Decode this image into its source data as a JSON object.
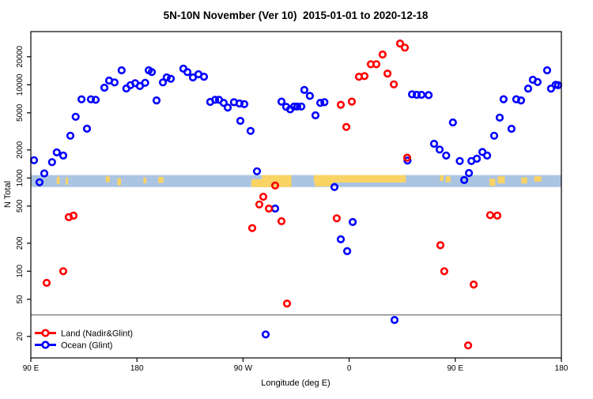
{
  "chart_data": {
    "type": "scatter",
    "title": "5N-10N November (Ver 10)  2015-01-01 to 2020-12-18",
    "xlabel": "Longitude (deg E)",
    "ylabel": "N Total",
    "x_axis": {
      "unit": "degrees east of 90E along wrapped longitude axis",
      "range_deg": [
        0,
        450
      ],
      "ticks": [
        {
          "pos": 0,
          "label": "90 E"
        },
        {
          "pos": 90,
          "label": "180"
        },
        {
          "pos": 180,
          "label": "90 W"
        },
        {
          "pos": 270,
          "label": "0"
        },
        {
          "pos": 360,
          "label": "90 E"
        },
        {
          "pos": 450,
          "label": "180"
        }
      ]
    },
    "y_axis": {
      "scale": "log",
      "range": [
        12,
        37000
      ],
      "ticks": [
        20,
        50,
        100,
        200,
        500,
        1000,
        2000,
        5000,
        10000,
        20000
      ],
      "tick_labels": [
        "20",
        "50",
        "100",
        "200",
        "500",
        "1000",
        "2000",
        "5000",
        "10000",
        "20000"
      ]
    },
    "reference_line": {
      "value": 34,
      "color": "#7a7a7a"
    },
    "latitude_band": {
      "description": "land/ocean strip for 5N-10N latitude",
      "value_range": [
        800,
        1075
      ],
      "ocean_color": "#abc4e2",
      "land_color": "#fad365",
      "land_segments": [
        {
          "a1": 22,
          "a2": 24.5,
          "t": 0.15,
          "b": 0.75
        },
        {
          "a1": 29.5,
          "a2": 31.5,
          "t": 0.2,
          "b": 0.8
        },
        {
          "a1": 63.5,
          "a2": 67,
          "t": 0.1,
          "b": 0.6
        },
        {
          "a1": 73.5,
          "a2": 76.5,
          "t": 0.25,
          "b": 0.85
        },
        {
          "a1": 95.5,
          "a2": 98,
          "t": 0.2,
          "b": 0.7
        },
        {
          "a1": 108,
          "a2": 112.5,
          "t": 0.15,
          "b": 0.65
        },
        {
          "a1": 187,
          "a2": 203,
          "t": 0.35,
          "b": 1.0
        },
        {
          "a1": 196,
          "a2": 221,
          "t": 0.0,
          "b": 1.0
        },
        {
          "a1": 241,
          "a2": 256,
          "t": 0.0,
          "b": 0.95
        },
        {
          "a1": 240,
          "a2": 318,
          "t": 0.0,
          "b": 0.62
        },
        {
          "a1": 347,
          "a2": 350,
          "t": 0.0,
          "b": 0.5
        },
        {
          "a1": 352,
          "a2": 356,
          "t": 0.1,
          "b": 0.6
        },
        {
          "a1": 389,
          "a2": 394,
          "t": 0.3,
          "b": 0.9
        },
        {
          "a1": 396,
          "a2": 402,
          "t": 0.1,
          "b": 0.7
        },
        {
          "a1": 416,
          "a2": 421,
          "t": 0.2,
          "b": 0.7
        },
        {
          "a1": 427,
          "a2": 433,
          "t": 0.1,
          "b": 0.55
        }
      ]
    },
    "series": [
      {
        "name": "Land (Nadir&Glint)",
        "color": "#ff0000",
        "marker": "open-circle",
        "points": [
          [
            13.4,
            75
          ],
          [
            27.5,
            100
          ],
          [
            32.2,
            380
          ],
          [
            36.2,
            395
          ],
          [
            187.8,
            290
          ],
          [
            193.8,
            520
          ],
          [
            197.2,
            630
          ],
          [
            201.9,
            470
          ],
          [
            207.2,
            830
          ],
          [
            212.6,
            344
          ],
          [
            217.3,
            45
          ],
          [
            259.5,
            370
          ],
          [
            262.9,
            6100
          ],
          [
            267.6,
            3530
          ],
          [
            272.3,
            6600
          ],
          [
            278.3,
            12200
          ],
          [
            283,
            12400
          ],
          [
            288.4,
            16600
          ],
          [
            293.1,
            16600
          ],
          [
            298.4,
            21100
          ],
          [
            302.5,
            13200
          ],
          [
            307.9,
            10100
          ],
          [
            313.2,
            27700
          ],
          [
            317.2,
            25000
          ],
          [
            319.2,
            1650
          ],
          [
            347.4,
            190
          ],
          [
            350.7,
            100
          ],
          [
            370.9,
            16
          ],
          [
            375.6,
            72
          ],
          [
            389.6,
            400
          ],
          [
            395.7,
            395
          ]
        ]
      },
      {
        "name": "Ocean (Glint)",
        "color": "#0000ff",
        "marker": "open-circle",
        "points": [
          [
            2.7,
            1550
          ],
          [
            7.4,
            900
          ],
          [
            11.4,
            1120
          ],
          [
            18,
            1480
          ],
          [
            22,
            1880
          ],
          [
            27.5,
            1740
          ],
          [
            33.5,
            2840
          ],
          [
            38,
            4540
          ],
          [
            43,
            6980
          ],
          [
            47.6,
            3380
          ],
          [
            51,
            6980
          ],
          [
            55,
            6900
          ],
          [
            62.4,
            9300
          ],
          [
            66.4,
            11100
          ],
          [
            71,
            10600
          ],
          [
            77,
            14300
          ],
          [
            81,
            9130
          ],
          [
            84.5,
            9900
          ],
          [
            88.5,
            10400
          ],
          [
            92.5,
            9700
          ],
          [
            97,
            10500
          ],
          [
            100,
            14300
          ],
          [
            102.6,
            13700
          ],
          [
            106.6,
            6800
          ],
          [
            112,
            10600
          ],
          [
            115.3,
            12000
          ],
          [
            118.7,
            11600
          ],
          [
            129.4,
            14900
          ],
          [
            132.8,
            13700
          ],
          [
            137.5,
            12000
          ],
          [
            142.2,
            12970
          ],
          [
            146.9,
            12200
          ],
          [
            152.2,
            6550
          ],
          [
            156.3,
            6900
          ],
          [
            159.6,
            6900
          ],
          [
            163.6,
            6400
          ],
          [
            167,
            5700
          ],
          [
            172.3,
            6500
          ],
          [
            177,
            6300
          ],
          [
            177.7,
            4100
          ],
          [
            181.1,
            6200
          ],
          [
            186.4,
            3200
          ],
          [
            191.8,
            1180
          ],
          [
            199.2,
            21
          ],
          [
            207.2,
            470
          ],
          [
            212.6,
            6600
          ],
          [
            216.6,
            5800
          ],
          [
            220,
            5450
          ],
          [
            223.3,
            5850
          ],
          [
            226,
            5850
          ],
          [
            229.4,
            5850
          ],
          [
            232,
            8800
          ],
          [
            236.7,
            7600
          ],
          [
            241.4,
            4700
          ],
          [
            245.5,
            6400
          ],
          [
            249,
            6500
          ],
          [
            257.5,
            800
          ],
          [
            262.9,
            220
          ],
          [
            268.3,
            164
          ],
          [
            273,
            337
          ],
          [
            308.5,
            30
          ],
          [
            319.5,
            1540
          ],
          [
            323.3,
            7900
          ],
          [
            327.3,
            7800
          ],
          [
            331.3,
            7800
          ],
          [
            337.4,
            7750
          ],
          [
            342,
            2330
          ],
          [
            346.7,
            2020
          ],
          [
            352.3,
            1740
          ],
          [
            358,
            3940
          ],
          [
            363.8,
            1520
          ],
          [
            367.6,
            950
          ],
          [
            371.6,
            1130
          ],
          [
            373.7,
            1520
          ],
          [
            378.3,
            1610
          ],
          [
            383,
            1900
          ],
          [
            387,
            1740
          ],
          [
            393,
            2840
          ],
          [
            397.7,
            4440
          ],
          [
            401,
            7000
          ],
          [
            407.7,
            3370
          ],
          [
            411.7,
            7000
          ],
          [
            415.8,
            6800
          ],
          [
            421.8,
            9100
          ],
          [
            425.8,
            11300
          ],
          [
            429.8,
            10700
          ],
          [
            437.9,
            14300
          ],
          [
            441.2,
            9100
          ],
          [
            445.2,
            10000
          ],
          [
            447.3,
            9900
          ]
        ]
      }
    ],
    "legend_position": "bottom-left"
  }
}
